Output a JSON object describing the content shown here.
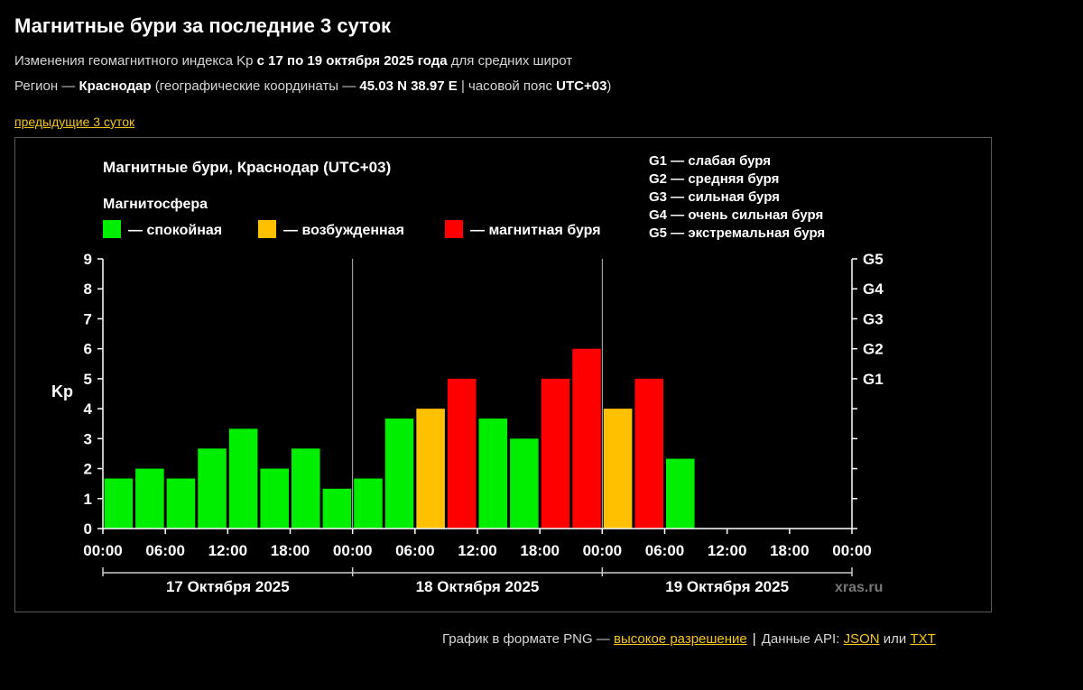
{
  "header": {
    "title": "Магнитные бури за последние 3 суток",
    "subtitle_pre": "Изменения геомагнитного индекса Kp ",
    "subtitle_bold": "с 17 по 19 октября 2025 года",
    "subtitle_post": " для средних широт",
    "region_pre": "Регион — ",
    "region_name": "Краснодар",
    "region_mid": " (географические координаты — ",
    "region_coords": "45.03 N 38.97 E",
    "region_tz_pre": " | часовой пояс ",
    "region_tz": "UTC+03",
    "region_post": ")",
    "prev_link": "предыдущие 3 суток"
  },
  "chart_data": {
    "type": "bar",
    "title": "Магнитные бури, Краснодар (UTC+03)",
    "legend_title": "Магнитосфера",
    "legend": [
      {
        "label": "— спокойная",
        "color": "#00ee00"
      },
      {
        "label": "— возбужденная",
        "color": "#ffc000"
      },
      {
        "label": "— магнитная буря",
        "color": "#ff0000"
      }
    ],
    "g_legend": [
      "G1 — слабая буря",
      "G2 — средняя буря",
      "G3 — сильная буря",
      "G4 — очень сильная буря",
      "G5 — экстремальная буря"
    ],
    "ylabel": "Kp",
    "ylim": [
      0,
      9
    ],
    "yticks": [
      0,
      1,
      2,
      3,
      4,
      5,
      6,
      7,
      8,
      9
    ],
    "g_ticks": [
      {
        "kp": 5,
        "label": "G1"
      },
      {
        "kp": 6,
        "label": "G2"
      },
      {
        "kp": 7,
        "label": "G3"
      },
      {
        "kp": 8,
        "label": "G4"
      },
      {
        "kp": 9,
        "label": "G5"
      }
    ],
    "xtick_labels": [
      "00:00",
      "06:00",
      "12:00",
      "18:00",
      "00:00",
      "06:00",
      "12:00",
      "18:00",
      "00:00",
      "06:00",
      "12:00",
      "18:00",
      "00:00"
    ],
    "days": [
      "17 Октября 2025",
      "18 Октября 2025",
      "19 Октября 2025"
    ],
    "slots_total": 24,
    "values": [
      1.67,
      2.0,
      1.67,
      2.67,
      3.33,
      2.0,
      2.67,
      1.33,
      1.67,
      3.67,
      4.0,
      5.0,
      3.67,
      3.0,
      5.0,
      6.0,
      4.0,
      5.0,
      2.33
    ],
    "watermark": "xras.ru",
    "colors": {
      "quiet": "#00ee00",
      "active": "#ffc000",
      "storm": "#ff0000"
    }
  },
  "footer": {
    "png_text": "График в формате PNG — ",
    "hires_link": "высокое разрешение",
    "sep": "|",
    "api_text": "Данные API: ",
    "json_link": "JSON",
    "or_text": " или ",
    "txt_link": "TXT"
  }
}
